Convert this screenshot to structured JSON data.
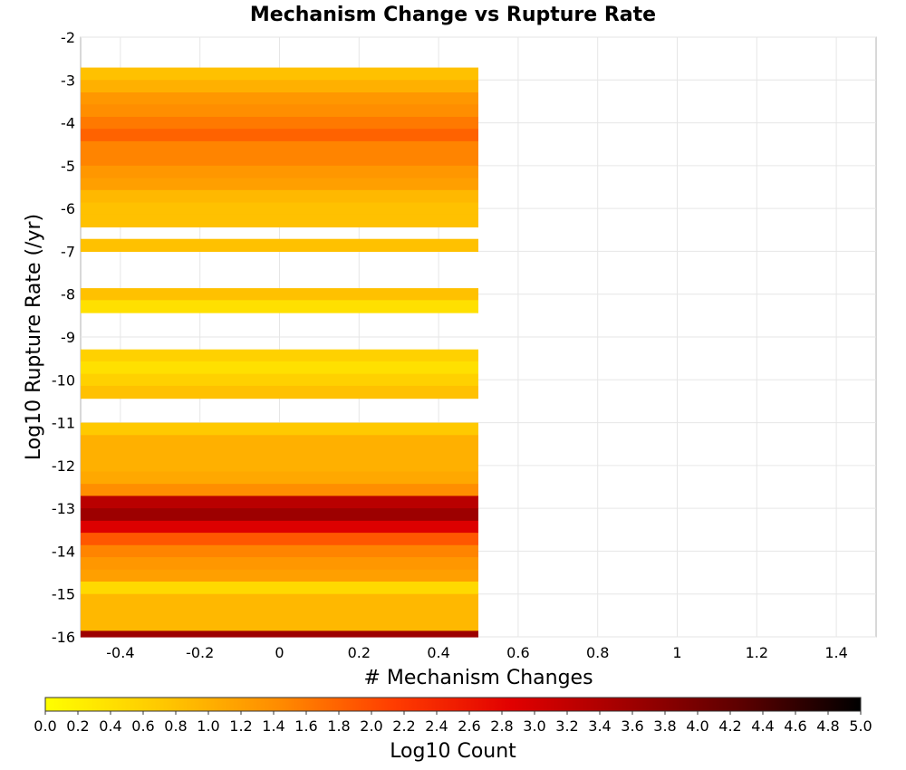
{
  "chart_data": {
    "type": "heatmap",
    "title": "Mechanism Change vs Rupture Rate",
    "xlabel": "# Mechanism Changes",
    "ylabel": "Log10 Rupture Rate (/yr)",
    "xlim": [
      -0.5,
      1.5
    ],
    "ylim": [
      -16,
      -2
    ],
    "x_ticks": [
      "-0.4",
      "-0.2",
      "0",
      "0.2",
      "0.4",
      "0.6",
      "0.8",
      "1",
      "1.2",
      "1.4"
    ],
    "y_ticks": [
      "-2",
      "-3",
      "-4",
      "-5",
      "-6",
      "-7",
      "-8",
      "-9",
      "-10",
      "-11",
      "-12",
      "-13",
      "-14",
      "-15",
      "-16"
    ],
    "grid": true,
    "x_categories": [
      0
    ],
    "y_bin_width": 0.286,
    "cells": [
      {
        "x": 0,
        "y_lo": -3.0,
        "y_hi": -2.71,
        "z": 0.8
      },
      {
        "x": 0,
        "y_lo": -3.29,
        "y_hi": -3.0,
        "z": 1.0
      },
      {
        "x": 0,
        "y_lo": -3.57,
        "y_hi": -3.29,
        "z": 1.3
      },
      {
        "x": 0,
        "y_lo": -3.86,
        "y_hi": -3.57,
        "z": 1.4
      },
      {
        "x": 0,
        "y_lo": -4.14,
        "y_hi": -3.86,
        "z": 1.6
      },
      {
        "x": 0,
        "y_lo": -4.43,
        "y_hi": -4.14,
        "z": 1.8
      },
      {
        "x": 0,
        "y_lo": -4.71,
        "y_hi": -4.43,
        "z": 1.5
      },
      {
        "x": 0,
        "y_lo": -5.0,
        "y_hi": -4.71,
        "z": 1.5
      },
      {
        "x": 0,
        "y_lo": -5.29,
        "y_hi": -5.0,
        "z": 1.3
      },
      {
        "x": 0,
        "y_lo": -5.57,
        "y_hi": -5.29,
        "z": 1.2
      },
      {
        "x": 0,
        "y_lo": -5.86,
        "y_hi": -5.57,
        "z": 0.9
      },
      {
        "x": 0,
        "y_lo": -6.14,
        "y_hi": -5.86,
        "z": 0.8
      },
      {
        "x": 0,
        "y_lo": -6.43,
        "y_hi": -6.14,
        "z": 0.8
      },
      {
        "x": 0,
        "y_lo": -7.0,
        "y_hi": -6.71,
        "z": 0.8
      },
      {
        "x": 0,
        "y_lo": -8.14,
        "y_hi": -7.86,
        "z": 0.8
      },
      {
        "x": 0,
        "y_lo": -8.43,
        "y_hi": -8.14,
        "z": 0.4
      },
      {
        "x": 0,
        "y_lo": -9.57,
        "y_hi": -9.29,
        "z": 0.6
      },
      {
        "x": 0,
        "y_lo": -9.86,
        "y_hi": -9.57,
        "z": 0.4
      },
      {
        "x": 0,
        "y_lo": -10.14,
        "y_hi": -9.86,
        "z": 0.6
      },
      {
        "x": 0,
        "y_lo": -10.43,
        "y_hi": -10.14,
        "z": 0.8
      },
      {
        "x": 0,
        "y_lo": -11.29,
        "y_hi": -11.0,
        "z": 0.7
      },
      {
        "x": 0,
        "y_lo": -11.57,
        "y_hi": -11.29,
        "z": 1.0
      },
      {
        "x": 0,
        "y_lo": -11.86,
        "y_hi": -11.57,
        "z": 1.0
      },
      {
        "x": 0,
        "y_lo": -12.14,
        "y_hi": -11.86,
        "z": 1.0
      },
      {
        "x": 0,
        "y_lo": -12.43,
        "y_hi": -12.14,
        "z": 1.1
      },
      {
        "x": 0,
        "y_lo": -12.71,
        "y_hi": -12.43,
        "z": 1.4
      },
      {
        "x": 0,
        "y_lo": -13.0,
        "y_hi": -12.71,
        "z": 3.3
      },
      {
        "x": 0,
        "y_lo": -13.29,
        "y_hi": -13.0,
        "z": 3.6
      },
      {
        "x": 0,
        "y_lo": -13.57,
        "y_hi": -13.29,
        "z": 2.9
      },
      {
        "x": 0,
        "y_lo": -13.86,
        "y_hi": -13.57,
        "z": 1.9
      },
      {
        "x": 0,
        "y_lo": -14.14,
        "y_hi": -13.86,
        "z": 1.5
      },
      {
        "x": 0,
        "y_lo": -14.43,
        "y_hi": -14.14,
        "z": 1.3
      },
      {
        "x": 0,
        "y_lo": -14.71,
        "y_hi": -14.43,
        "z": 1.2
      },
      {
        "x": 0,
        "y_lo": -15.0,
        "y_hi": -14.71,
        "z": 0.5
      },
      {
        "x": 0,
        "y_lo": -15.29,
        "y_hi": -15.0,
        "z": 0.9
      },
      {
        "x": 0,
        "y_lo": -15.57,
        "y_hi": -15.29,
        "z": 0.9
      },
      {
        "x": 0,
        "y_lo": -15.86,
        "y_hi": -15.57,
        "z": 0.9
      },
      {
        "x": 0,
        "y_lo": -16.0,
        "y_hi": -15.86,
        "z": 3.6
      }
    ],
    "colorbar": {
      "label": "Log10 Count",
      "range": [
        0.0,
        5.0
      ],
      "ticks": [
        "0.0",
        "0.2",
        "0.4",
        "0.6",
        "0.8",
        "1.0",
        "1.2",
        "1.4",
        "1.6",
        "1.8",
        "2.0",
        "2.2",
        "2.4",
        "2.6",
        "2.8",
        "3.0",
        "3.2",
        "3.4",
        "3.6",
        "3.8",
        "4.0",
        "4.2",
        "4.4",
        "4.6",
        "4.8",
        "5.0"
      ],
      "placement": "bottom",
      "stops": [
        "#ffff00",
        "#ffc800",
        "#ff8c00",
        "#ff3c00",
        "#e10000",
        "#a00000",
        "#5a0000",
        "#000000"
      ]
    }
  }
}
